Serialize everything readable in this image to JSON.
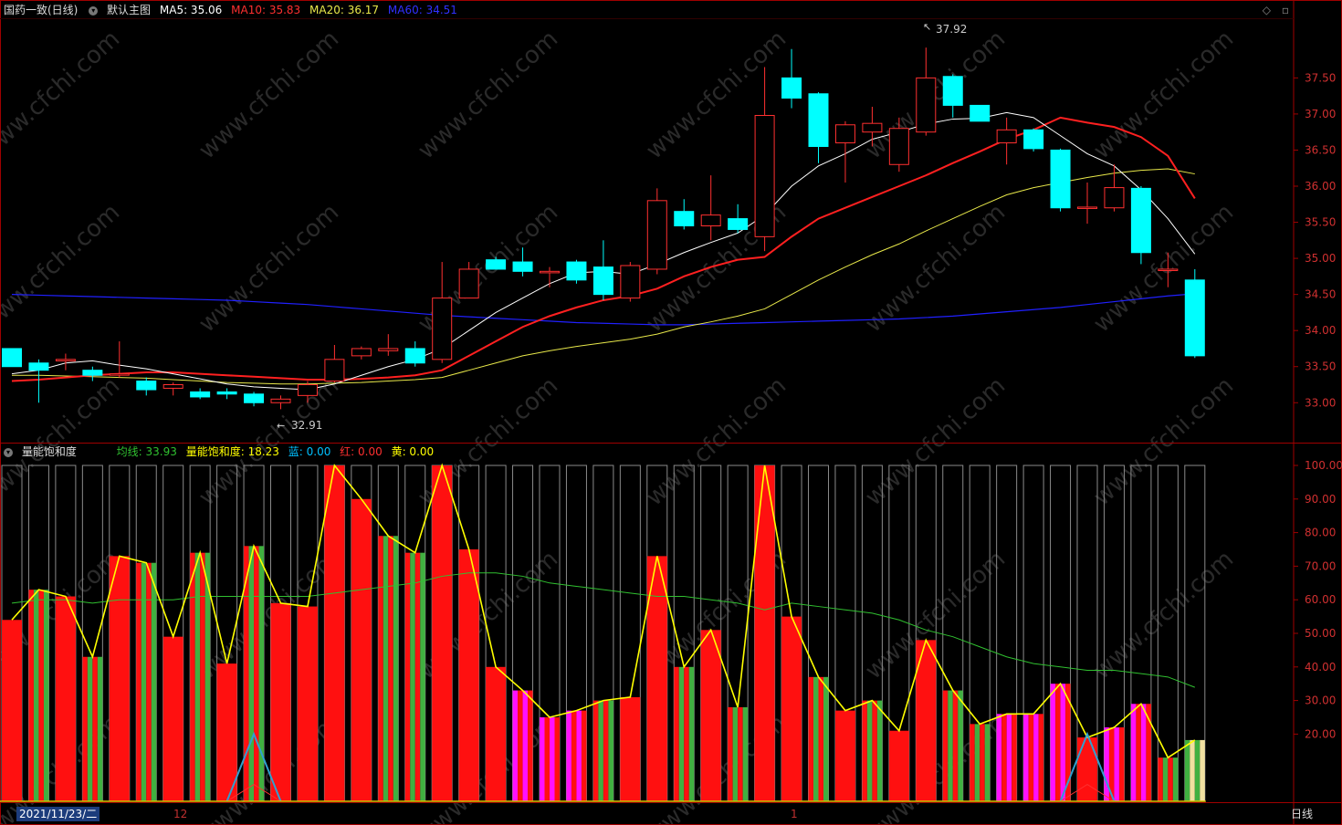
{
  "header": {
    "stock_title": "国药一致(日线)",
    "main_chart_label": "默认主图",
    "ma5_label": "MA5: 35.06",
    "ma10_label": "MA10: 35.83",
    "ma20_label": "MA20: 36.17",
    "ma60_label": "MA60: 34.51"
  },
  "indicator_header": {
    "name": "量能饱和度",
    "avg_label": "均线: 33.93",
    "sat_label": "量能饱和度: 18.23",
    "blue_label": "蓝: 0.00",
    "red_label": "红: 0.00",
    "yellow_label": "黄: 0.00"
  },
  "footer": {
    "date_cursor": "2021/11/23/二",
    "month_12": "12",
    "month_1": "1",
    "period": "日线"
  },
  "annotations": {
    "high_label": "37.92",
    "low_label": "32.91"
  },
  "watermark": "www.cfchi.com",
  "colors": {
    "up": "#ff3030",
    "down": "#00ffff",
    "ma5": "#ffffff",
    "ma10": "#ff2020",
    "ma20": "#e8e84a",
    "ma60": "#2020ff",
    "axis": "#a00000",
    "sat_line": "#ffff00",
    "avg_line": "#30c030"
  },
  "chart_data": [
    {
      "type": "candlestick",
      "title": "国药一致(日线)",
      "ylim": [
        32.7,
        38.2
      ],
      "y_ticks": [
        33.0,
        33.5,
        34.0,
        34.5,
        35.0,
        35.5,
        36.0,
        36.5,
        37.0,
        37.5
      ],
      "candles": [
        [
          33.75,
          33.5,
          33.75,
          33.5
        ],
        [
          33.55,
          33.45,
          33.6,
          33.0
        ],
        [
          33.58,
          33.6,
          33.68,
          33.45
        ],
        [
          33.45,
          33.38,
          33.5,
          33.3
        ],
        [
          33.4,
          33.4,
          33.85,
          33.35
        ],
        [
          33.3,
          33.18,
          33.35,
          33.1
        ],
        [
          33.2,
          33.25,
          33.28,
          33.1
        ],
        [
          33.15,
          33.08,
          33.2,
          33.05
        ],
        [
          33.15,
          33.12,
          33.2,
          33.05
        ],
        [
          33.12,
          33.0,
          33.15,
          32.95
        ],
        [
          33.0,
          33.05,
          33.1,
          32.91
        ],
        [
          33.1,
          33.25,
          33.3,
          33.0
        ],
        [
          33.3,
          33.6,
          33.8,
          33.28
        ],
        [
          33.65,
          33.75,
          33.78,
          33.6
        ],
        [
          33.72,
          33.75,
          33.95,
          33.65
        ],
        [
          33.75,
          33.55,
          33.85,
          33.5
        ],
        [
          33.6,
          34.45,
          34.95,
          33.55
        ],
        [
          34.45,
          34.85,
          34.95,
          34.45
        ],
        [
          34.98,
          34.85,
          35.02,
          34.85
        ],
        [
          34.95,
          34.82,
          35.15,
          34.75
        ],
        [
          34.8,
          34.82,
          34.88,
          34.6
        ],
        [
          34.95,
          34.7,
          34.98,
          34.65
        ],
        [
          34.88,
          34.5,
          35.25,
          34.42
        ],
        [
          34.45,
          34.9,
          34.95,
          34.4
        ],
        [
          34.85,
          35.8,
          35.97,
          34.78
        ],
        [
          35.65,
          35.45,
          35.82,
          35.4
        ],
        [
          35.45,
          35.6,
          36.15,
          35.25
        ],
        [
          35.55,
          35.4,
          35.75,
          35.35
        ],
        [
          35.3,
          36.98,
          37.65,
          35.1
        ],
        [
          37.5,
          37.22,
          37.9,
          37.08
        ],
        [
          37.28,
          36.55,
          37.3,
          36.32
        ],
        [
          36.6,
          36.85,
          36.9,
          36.05
        ],
        [
          36.75,
          36.87,
          37.1,
          36.55
        ],
        [
          36.3,
          36.8,
          36.95,
          36.2
        ],
        [
          36.75,
          37.5,
          37.92,
          36.7
        ],
        [
          37.52,
          37.12,
          37.55,
          36.95
        ],
        [
          37.12,
          36.9,
          37.12,
          36.9
        ],
        [
          36.6,
          36.78,
          36.95,
          36.3
        ],
        [
          36.78,
          36.52,
          36.8,
          36.48
        ],
        [
          36.5,
          35.7,
          36.52,
          35.65
        ],
        [
          35.7,
          35.71,
          36.05,
          35.48
        ],
        [
          35.7,
          35.98,
          36.3,
          35.65
        ],
        [
          35.97,
          35.08,
          36.0,
          34.92
        ],
        [
          34.85,
          34.85,
          35.08,
          34.6
        ],
        [
          34.7,
          33.65,
          34.85,
          33.62
        ]
      ],
      "ma5": [
        33.4,
        33.45,
        33.55,
        33.58,
        33.52,
        33.47,
        33.4,
        33.33,
        33.26,
        33.22,
        33.2,
        33.18,
        33.26,
        33.38,
        33.5,
        33.6,
        33.75,
        34.0,
        34.25,
        34.45,
        34.65,
        34.8,
        34.82,
        34.78,
        34.92,
        35.08,
        35.22,
        35.35,
        35.6,
        36.0,
        36.28,
        36.45,
        36.65,
        36.75,
        36.86,
        36.93,
        36.94,
        37.02,
        36.95,
        36.7,
        36.45,
        36.28,
        35.95,
        35.55,
        35.06
      ],
      "ma10": [
        33.3,
        33.32,
        33.35,
        33.38,
        33.4,
        33.42,
        33.42,
        33.4,
        33.38,
        33.36,
        33.34,
        33.32,
        33.32,
        33.33,
        33.35,
        33.38,
        33.45,
        33.65,
        33.85,
        34.05,
        34.2,
        34.32,
        34.42,
        34.48,
        34.58,
        34.75,
        34.88,
        34.98,
        35.02,
        35.3,
        35.55,
        35.7,
        35.85,
        36.0,
        36.15,
        36.32,
        36.48,
        36.65,
        36.78,
        36.95,
        36.88,
        36.82,
        36.68,
        36.42,
        35.83
      ],
      "ma20": [
        33.38,
        33.38,
        33.37,
        33.36,
        33.35,
        33.34,
        33.32,
        33.3,
        33.28,
        33.27,
        33.26,
        33.26,
        33.27,
        33.28,
        33.3,
        33.32,
        33.35,
        33.45,
        33.55,
        33.65,
        33.72,
        33.78,
        33.83,
        33.88,
        33.95,
        34.05,
        34.12,
        34.2,
        34.3,
        34.5,
        34.7,
        34.88,
        35.05,
        35.2,
        35.38,
        35.55,
        35.72,
        35.88,
        35.98,
        36.05,
        36.12,
        36.18,
        36.22,
        36.24,
        36.17
      ],
      "ma60": [
        34.5,
        34.49,
        34.48,
        34.47,
        34.46,
        34.45,
        34.44,
        34.43,
        34.42,
        34.4,
        34.38,
        34.36,
        34.33,
        34.3,
        34.27,
        34.24,
        34.21,
        34.19,
        34.17,
        34.15,
        34.13,
        34.11,
        34.1,
        34.09,
        34.08,
        34.08,
        34.09,
        34.1,
        34.11,
        34.12,
        34.13,
        34.14,
        34.15,
        34.16,
        34.18,
        34.2,
        34.23,
        34.26,
        34.29,
        34.32,
        34.36,
        34.4,
        34.44,
        34.48,
        34.51
      ]
    },
    {
      "type": "bar",
      "title": "量能饱和度",
      "ylim": [
        0,
        100
      ],
      "y_ticks": [
        20,
        30,
        40,
        50,
        60,
        70,
        80,
        90,
        100
      ],
      "series": [
        {
          "name": "量能饱和度",
          "values": [
            54,
            63,
            61,
            43,
            73,
            71,
            49,
            74,
            41,
            76,
            59,
            58,
            100,
            90,
            79,
            74,
            100,
            75,
            40,
            33,
            25,
            27,
            30,
            31,
            73,
            40,
            51,
            28,
            100,
            55,
            37,
            27,
            30,
            21,
            48,
            33,
            23,
            26,
            26,
            35,
            19,
            22,
            29,
            13,
            18.23
          ]
        },
        {
          "name": "均线",
          "values": [
            59,
            60,
            60,
            59,
            60,
            60,
            60,
            61,
            61,
            61,
            61,
            61,
            62,
            63,
            64,
            65,
            67,
            68,
            68,
            67,
            65,
            64,
            63,
            62,
            61,
            61,
            60,
            59,
            57,
            59,
            58,
            57,
            56,
            54,
            51,
            49,
            46,
            43,
            41,
            40,
            39,
            39,
            38,
            37,
            33.93
          ]
        },
        {
          "name": "蓝",
          "values": [
            0,
            0,
            0,
            0,
            0,
            0,
            0,
            0,
            0,
            20,
            0,
            0,
            0,
            0,
            0,
            0,
            0,
            0,
            0,
            0,
            0,
            0,
            0,
            0,
            0,
            0,
            0,
            0,
            0,
            0,
            0,
            0,
            0,
            0,
            0,
            0,
            0,
            0,
            0,
            0,
            20,
            0,
            0,
            0,
            0
          ]
        }
      ],
      "bar_color_pattern": [
        "r",
        "g",
        "r",
        "g",
        "r",
        "g",
        "r",
        "g",
        "r",
        "g",
        "r",
        "r",
        "r",
        "r",
        "g",
        "g",
        "r",
        "r",
        "r",
        "m",
        "m",
        "m",
        "g",
        "r",
        "r",
        "g",
        "r",
        "g",
        "r",
        "r",
        "g",
        "r",
        "g",
        "r",
        "r",
        "g",
        "g",
        "m",
        "m",
        "m",
        "r",
        "m",
        "m",
        "g",
        "y"
      ]
    }
  ]
}
